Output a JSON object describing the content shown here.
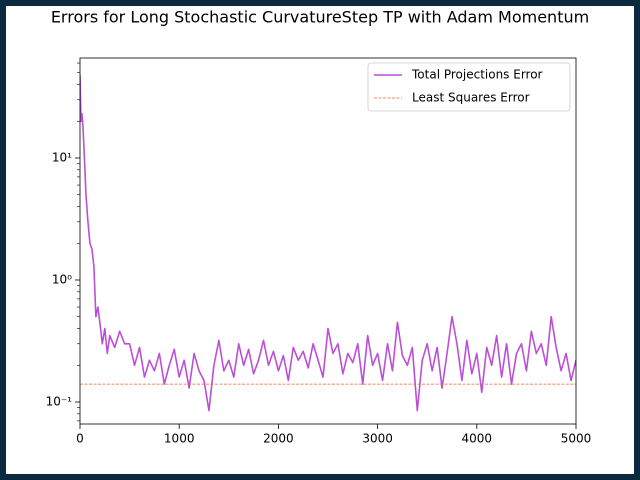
{
  "chart_data": {
    "type": "line",
    "title": "Errors for Long Stochastic CurvatureStep TP with Adam Momentum",
    "series": [
      {
        "name": "Total Projections Error",
        "color": "#bb4fd8",
        "style": "solid",
        "x": [
          0,
          10,
          20,
          30,
          40,
          50,
          60,
          80,
          100,
          120,
          140,
          160,
          180,
          200,
          225,
          250,
          275,
          300,
          350,
          400,
          450,
          500,
          550,
          600,
          650,
          700,
          750,
          800,
          850,
          900,
          950,
          1000,
          1050,
          1100,
          1150,
          1200,
          1250,
          1300,
          1350,
          1400,
          1450,
          1500,
          1550,
          1600,
          1650,
          1700,
          1750,
          1800,
          1850,
          1900,
          1950,
          2000,
          2050,
          2100,
          2150,
          2200,
          2250,
          2300,
          2350,
          2400,
          2450,
          2500,
          2550,
          2600,
          2650,
          2700,
          2750,
          2800,
          2850,
          2900,
          2950,
          3000,
          3050,
          3100,
          3150,
          3200,
          3250,
          3300,
          3350,
          3400,
          3450,
          3500,
          3550,
          3600,
          3650,
          3700,
          3750,
          3800,
          3850,
          3900,
          3950,
          4000,
          4050,
          4100,
          4150,
          4200,
          4250,
          4300,
          4350,
          4400,
          4450,
          4500,
          4550,
          4600,
          4650,
          4700,
          4750,
          4800,
          4850,
          4900,
          4950,
          5000
        ],
        "values": [
          48,
          20,
          23,
          18,
          12,
          8,
          5,
          3,
          2,
          1.8,
          1.3,
          0.5,
          0.6,
          0.45,
          0.3,
          0.4,
          0.25,
          0.35,
          0.28,
          0.38,
          0.3,
          0.3,
          0.2,
          0.28,
          0.16,
          0.22,
          0.18,
          0.25,
          0.14,
          0.2,
          0.27,
          0.16,
          0.22,
          0.13,
          0.25,
          0.18,
          0.15,
          0.085,
          0.2,
          0.32,
          0.18,
          0.22,
          0.16,
          0.3,
          0.2,
          0.27,
          0.17,
          0.22,
          0.32,
          0.2,
          0.26,
          0.18,
          0.24,
          0.15,
          0.28,
          0.22,
          0.26,
          0.19,
          0.3,
          0.22,
          0.16,
          0.4,
          0.25,
          0.3,
          0.17,
          0.25,
          0.21,
          0.3,
          0.14,
          0.35,
          0.2,
          0.25,
          0.15,
          0.3,
          0.18,
          0.45,
          0.24,
          0.2,
          0.28,
          0.085,
          0.22,
          0.3,
          0.18,
          0.28,
          0.13,
          0.25,
          0.5,
          0.3,
          0.15,
          0.32,
          0.17,
          0.25,
          0.12,
          0.28,
          0.2,
          0.35,
          0.16,
          0.3,
          0.14,
          0.25,
          0.3,
          0.18,
          0.38,
          0.25,
          0.3,
          0.2,
          0.5,
          0.28,
          0.18,
          0.25,
          0.15,
          0.22
        ]
      },
      {
        "name": "Least Squares Error",
        "color": "#f0602a",
        "style": "dashed",
        "x": [
          0,
          5000
        ],
        "values": [
          0.14,
          0.14
        ]
      }
    ],
    "xlim": [
      0,
      5000
    ],
    "xticks": [
      0,
      1000,
      2000,
      3000,
      4000,
      5000
    ],
    "ylim": [
      0.066,
      66
    ],
    "yscale": "log",
    "yticks": [
      {
        "value": 0.1,
        "label": "10⁻¹"
      },
      {
        "value": 1,
        "label": "10⁰"
      },
      {
        "value": 10,
        "label": "10¹"
      }
    ],
    "yminorticks": [
      0.07,
      0.08,
      0.09,
      0.2,
      0.3,
      0.4,
      0.5,
      0.6,
      0.7,
      0.8,
      0.9,
      2,
      3,
      4,
      5,
      6,
      7,
      8,
      9,
      20,
      30,
      40,
      50,
      60
    ],
    "legend": "upper right",
    "grid": false
  }
}
